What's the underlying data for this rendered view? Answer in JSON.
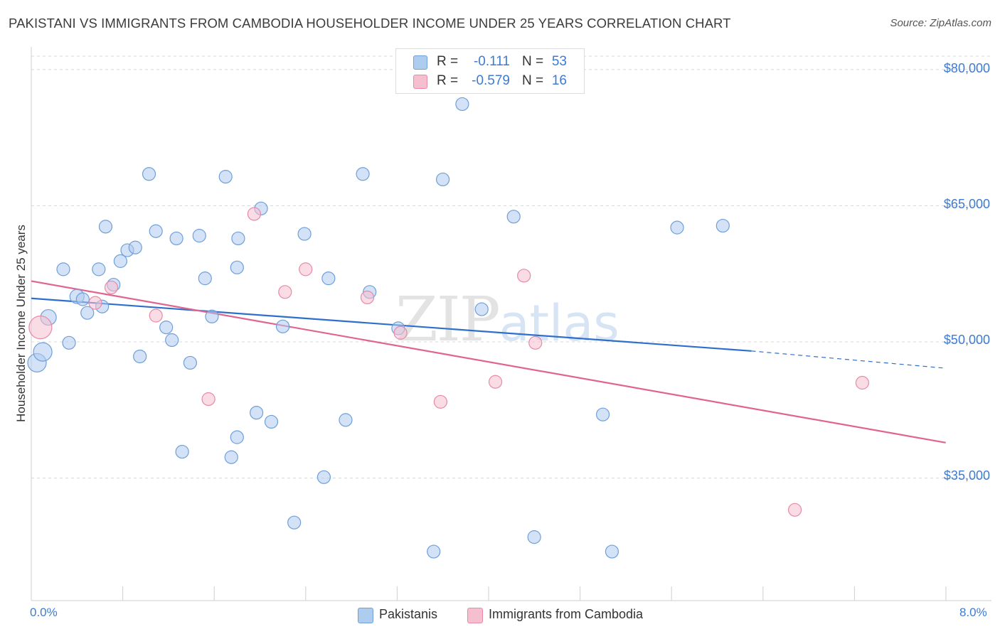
{
  "header": {
    "title": "PAKISTANI VS IMMIGRANTS FROM CAMBODIA HOUSEHOLDER INCOME UNDER 25 YEARS CORRELATION CHART",
    "source": "Source: ZipAtlas.com"
  },
  "watermark": {
    "zip": "ZIP",
    "atlas": "atlas"
  },
  "legend_top": {
    "rows": [
      {
        "r_label": "R =",
        "r_value": "-0.111",
        "n_label": "N =",
        "n_value": "53",
        "color": "#aecbf0"
      },
      {
        "r_label": "R =",
        "r_value": "-0.579",
        "n_label": "N =",
        "n_value": "16",
        "color": "#f6bfd0"
      }
    ]
  },
  "legend_bottom": {
    "items": [
      {
        "label": "Pakistanis",
        "color": "#aecbf0"
      },
      {
        "label": "Immigrants from Cambodia",
        "color": "#f6bfd0"
      }
    ]
  },
  "colors": {
    "blue_fill": "#aecbf0",
    "blue_stroke": "#6f9fd8",
    "blue_line": "#2f6fcc",
    "pink_fill": "#f6bfd0",
    "pink_stroke": "#e889a8",
    "pink_line": "#e0648f",
    "grid": "#d8d8d8",
    "tick_text": "#3d7bd0"
  },
  "chart_data": {
    "type": "scatter",
    "title": "PAKISTANI VS IMMIGRANTS FROM CAMBODIA HOUSEHOLDER INCOME UNDER 25 YEARS CORRELATION CHART",
    "xlabel": "",
    "ylabel": "Householder Income Under 25 years",
    "x_tick_labels": [
      "0.0%",
      "8.0%"
    ],
    "y_tick_labels": [
      "$80,000",
      "$65,000",
      "$50,000",
      "$35,000"
    ],
    "y_ticks": [
      80000,
      65000,
      50000,
      35000
    ],
    "xlim": [
      0,
      8.4
    ],
    "ylim": [
      21500,
      82500
    ],
    "grid": true,
    "legend_position": "top-center",
    "series": [
      {
        "name": "Pakistanis",
        "r": -0.111,
        "n": 53,
        "trend": {
          "x0": 0,
          "y0": 54800,
          "x1": 6.3,
          "y1": 49000,
          "dash_to_x": 8.0,
          "dash_to_y": 47100
        },
        "points": [
          {
            "x": 0.05,
            "y": 47700,
            "s": 13
          },
          {
            "x": 0.1,
            "y": 48900,
            "s": 13
          },
          {
            "x": 0.15,
            "y": 52700,
            "s": 11
          },
          {
            "x": 0.28,
            "y": 58000,
            "s": 9
          },
          {
            "x": 0.33,
            "y": 49900,
            "s": 9
          },
          {
            "x": 0.4,
            "y": 55000,
            "s": 10
          },
          {
            "x": 0.45,
            "y": 54700,
            "s": 9
          },
          {
            "x": 0.49,
            "y": 53200,
            "s": 9
          },
          {
            "x": 0.59,
            "y": 58000,
            "s": 9
          },
          {
            "x": 0.62,
            "y": 53900,
            "s": 9
          },
          {
            "x": 0.65,
            "y": 62700,
            "s": 9
          },
          {
            "x": 0.72,
            "y": 56300,
            "s": 9
          },
          {
            "x": 0.78,
            "y": 58900,
            "s": 9
          },
          {
            "x": 0.84,
            "y": 60100,
            "s": 9
          },
          {
            "x": 0.91,
            "y": 60400,
            "s": 9
          },
          {
            "x": 0.95,
            "y": 48400,
            "s": 9
          },
          {
            "x": 1.03,
            "y": 68500,
            "s": 9
          },
          {
            "x": 1.09,
            "y": 62200,
            "s": 9
          },
          {
            "x": 1.18,
            "y": 51600,
            "s": 9
          },
          {
            "x": 1.23,
            "y": 50200,
            "s": 9
          },
          {
            "x": 1.27,
            "y": 61400,
            "s": 9
          },
          {
            "x": 1.32,
            "y": 37900,
            "s": 9
          },
          {
            "x": 1.39,
            "y": 47700,
            "s": 9
          },
          {
            "x": 1.47,
            "y": 61700,
            "s": 9
          },
          {
            "x": 1.52,
            "y": 57000,
            "s": 9
          },
          {
            "x": 1.58,
            "y": 52800,
            "s": 9
          },
          {
            "x": 1.7,
            "y": 68200,
            "s": 9
          },
          {
            "x": 1.75,
            "y": 37300,
            "s": 9
          },
          {
            "x": 1.8,
            "y": 58200,
            "s": 9
          },
          {
            "x": 1.81,
            "y": 61400,
            "s": 9
          },
          {
            "x": 1.8,
            "y": 39500,
            "s": 9
          },
          {
            "x": 1.97,
            "y": 42200,
            "s": 9
          },
          {
            "x": 2.01,
            "y": 64700,
            "s": 9
          },
          {
            "x": 2.1,
            "y": 41200,
            "s": 9
          },
          {
            "x": 2.2,
            "y": 51700,
            "s": 9
          },
          {
            "x": 2.3,
            "y": 30100,
            "s": 9
          },
          {
            "x": 2.39,
            "y": 61900,
            "s": 9
          },
          {
            "x": 2.56,
            "y": 35100,
            "s": 9
          },
          {
            "x": 2.6,
            "y": 57000,
            "s": 9
          },
          {
            "x": 2.75,
            "y": 41400,
            "s": 9
          },
          {
            "x": 2.9,
            "y": 68500,
            "s": 9
          },
          {
            "x": 2.96,
            "y": 55500,
            "s": 9
          },
          {
            "x": 3.21,
            "y": 51500,
            "s": 9
          },
          {
            "x": 3.52,
            "y": 26900,
            "s": 9
          },
          {
            "x": 3.6,
            "y": 67900,
            "s": 9
          },
          {
            "x": 3.77,
            "y": 76200,
            "s": 9
          },
          {
            "x": 3.94,
            "y": 53600,
            "s": 9
          },
          {
            "x": 4.22,
            "y": 63800,
            "s": 9
          },
          {
            "x": 4.4,
            "y": 28500,
            "s": 9
          },
          {
            "x": 5.0,
            "y": 42000,
            "s": 9
          },
          {
            "x": 5.08,
            "y": 26900,
            "s": 9
          },
          {
            "x": 5.65,
            "y": 62600,
            "s": 9
          },
          {
            "x": 6.05,
            "y": 62800,
            "s": 9
          }
        ]
      },
      {
        "name": "Immigrants from Cambodia",
        "r": -0.579,
        "n": 16,
        "trend": {
          "x0": 0,
          "y0": 56700,
          "x1": 8.0,
          "y1": 38900
        },
        "points": [
          {
            "x": 0.08,
            "y": 51600,
            "s": 16
          },
          {
            "x": 0.56,
            "y": 54300,
            "s": 9
          },
          {
            "x": 0.7,
            "y": 56000,
            "s": 9
          },
          {
            "x": 1.09,
            "y": 52900,
            "s": 9
          },
          {
            "x": 1.55,
            "y": 43700,
            "s": 9
          },
          {
            "x": 1.95,
            "y": 64100,
            "s": 9
          },
          {
            "x": 2.22,
            "y": 55500,
            "s": 9
          },
          {
            "x": 2.4,
            "y": 58000,
            "s": 9
          },
          {
            "x": 2.94,
            "y": 54900,
            "s": 9
          },
          {
            "x": 3.23,
            "y": 51000,
            "s": 9
          },
          {
            "x": 3.58,
            "y": 43400,
            "s": 9
          },
          {
            "x": 4.06,
            "y": 45600,
            "s": 9
          },
          {
            "x": 4.31,
            "y": 57300,
            "s": 9
          },
          {
            "x": 4.41,
            "y": 49900,
            "s": 9
          },
          {
            "x": 6.68,
            "y": 31500,
            "s": 9
          },
          {
            "x": 7.27,
            "y": 45500,
            "s": 9
          }
        ]
      }
    ]
  }
}
